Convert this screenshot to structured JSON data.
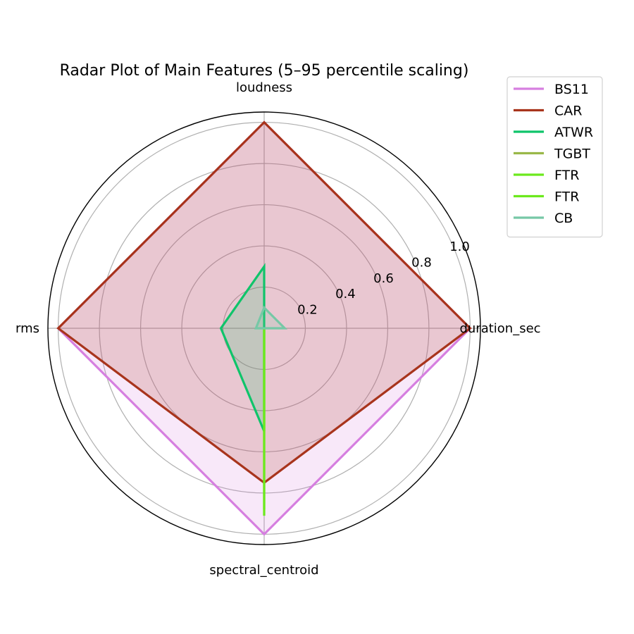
{
  "chart_data": {
    "type": "radar",
    "title": "Radar Plot of Main Features (5–95 percentile scaling)",
    "axes": [
      "duration_sec",
      "loudness",
      "rms",
      "spectral_centroid"
    ],
    "rlim": [
      0,
      1.05
    ],
    "rticks": [
      0.2,
      0.4,
      0.6,
      0.8,
      1.0
    ],
    "rtick_labels": [
      "0.2",
      "0.4",
      "0.6",
      "0.8",
      "1.0"
    ],
    "grid": true,
    "legend_position": "top-right",
    "series": [
      {
        "name": "BS11",
        "color": "#d67fe0",
        "fill": true,
        "fill_opacity": 0.18,
        "values": [
          1.0,
          1.0,
          1.0,
          1.0
        ]
      },
      {
        "name": "CAR",
        "color": "#a8341c",
        "fill": true,
        "fill_opacity": 0.18,
        "values": [
          1.0,
          1.0,
          1.0,
          0.75
        ]
      },
      {
        "name": "ATWR",
        "color": "#0fc46a",
        "fill": true,
        "fill_opacity": 0.18,
        "values": [
          0.0,
          0.3,
          0.21,
          0.5
        ]
      },
      {
        "name": "TGBT",
        "color": "#9ab849",
        "fill": true,
        "fill_opacity": 0.18,
        "values": [
          0.0,
          0.0,
          0.0,
          0.0
        ]
      },
      {
        "name": "FTR",
        "color": "#6ce91d",
        "fill": true,
        "fill_opacity": 0.18,
        "values": [
          0.0,
          0.0,
          0.0,
          0.91
        ]
      },
      {
        "name": "FTR",
        "color": "#6ce91d",
        "fill": true,
        "fill_opacity": 0.18,
        "values": [
          0.0,
          0.0,
          0.0,
          0.88
        ]
      },
      {
        "name": "CB",
        "color": "#76c8a6",
        "fill": true,
        "fill_opacity": 0.18,
        "values": [
          0.1,
          0.1,
          0.04,
          0.0
        ]
      }
    ]
  }
}
